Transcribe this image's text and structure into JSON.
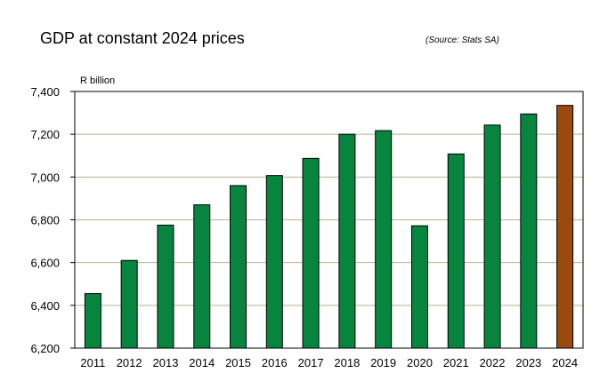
{
  "title": "GDP at constant 2024 prices",
  "source": "(Source: Stats SA)",
  "colors": {
    "bar": "#07853f",
    "highlight": "#9a4a0c",
    "grid": "#b9b58c",
    "axis": "#000000"
  },
  "chart_data": {
    "type": "bar",
    "title": "GDP at constant 2024 prices",
    "ylabel": "R billion",
    "xlabel": "",
    "ylim": [
      6200,
      7400
    ],
    "yticks": [
      6200,
      6400,
      6600,
      6800,
      7000,
      7200,
      7400
    ],
    "ytick_labels": [
      "6,200",
      "6,400",
      "6,600",
      "6,800",
      "7,000",
      "7,200",
      "7,400"
    ],
    "categories": [
      "2011",
      "2012",
      "2013",
      "2014",
      "2015",
      "2016",
      "2017",
      "2018",
      "2019",
      "2020",
      "2021",
      "2022",
      "2023",
      "2024"
    ],
    "values": [
      6455,
      6610,
      6775,
      6870,
      6960,
      7007,
      7087,
      7200,
      7217,
      6772,
      7108,
      7243,
      7295,
      7335
    ],
    "highlight_index": 13,
    "grid": true,
    "legend": "none"
  }
}
